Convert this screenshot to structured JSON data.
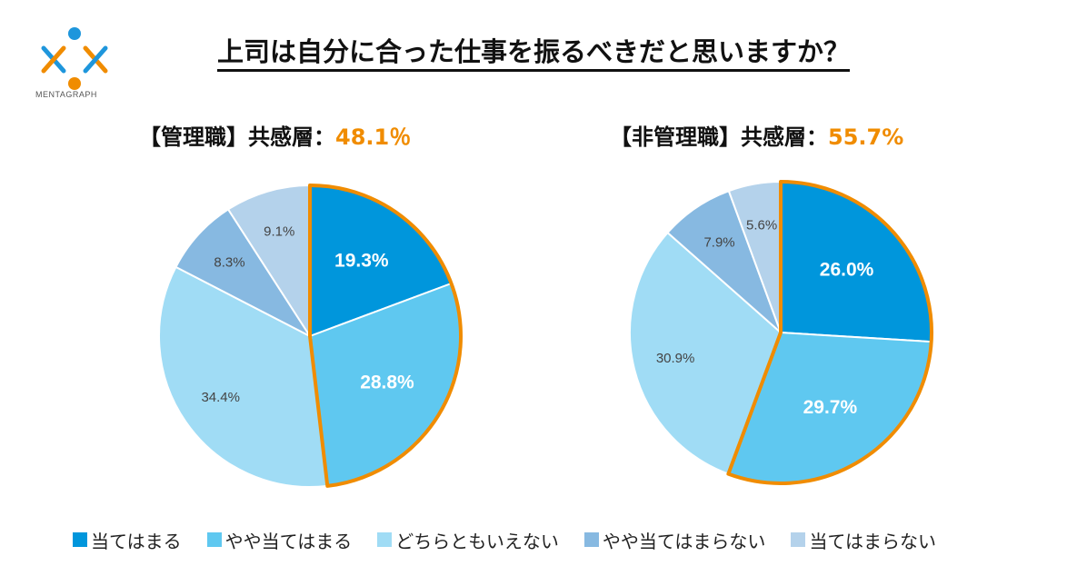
{
  "logo_text": "MENTAGRAPH",
  "title": "上司は自分に合った仕事を振るべきだと思いますか？",
  "colors": {
    "accent": "#F08C00",
    "categories": [
      "#0096DC",
      "#5FC8F0",
      "#A0DCF5",
      "#87B9E1",
      "#B4D2EB"
    ]
  },
  "legend": [
    "当てはまる",
    "やや当てはまる",
    "どちらともいえない",
    "やや当てはまらない",
    "当てはまらない"
  ],
  "chart_data": [
    {
      "type": "pie",
      "title_prefix": "【管理職】共感層：",
      "title_value": "48.1％",
      "categories": [
        "当てはまる",
        "やや当てはまる",
        "どちらともいえない",
        "やや当てはまらない",
        "当てはまらない"
      ],
      "values": [
        19.3,
        28.8,
        34.4,
        8.3,
        9.1
      ],
      "labels": [
        "19.3%",
        "28.8%",
        "34.4%",
        "8.3%",
        "9.1%"
      ],
      "highlighted": [
        "当てはまる",
        "やや当てはまる"
      ]
    },
    {
      "type": "pie",
      "title_prefix": "【非管理職】共感層：",
      "title_value": "55.7%",
      "categories": [
        "当てはまる",
        "やや当てはまる",
        "どちらともいえない",
        "やや当てはまらない",
        "当てはまらない"
      ],
      "values": [
        26.0,
        29.7,
        30.9,
        7.9,
        5.6
      ],
      "labels": [
        "26.0%",
        "29.7%",
        "30.9%",
        "7.9%",
        "5.6%"
      ],
      "highlighted": [
        "当てはまる",
        "やや当てはまる"
      ]
    }
  ]
}
